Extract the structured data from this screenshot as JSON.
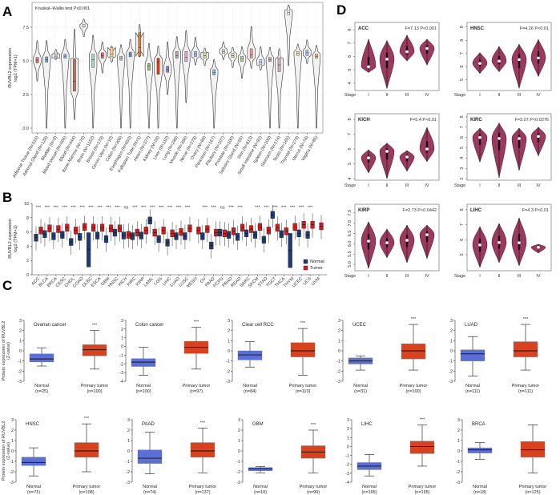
{
  "panels": [
    "A",
    "B",
    "C",
    "D"
  ],
  "chart_data": [
    {
      "type": "violin",
      "panel": "A",
      "annotation": "Kruskal–Wallis test P≤0.001",
      "ylabel": [
        "RUVBL2 expression",
        "log2 (TPM+1)"
      ],
      "ylim": [
        -0.3,
        9.3
      ],
      "yticks": [
        0,
        2.5,
        5,
        7.5
      ],
      "ytick_labels": [
        "0.0",
        "2.5",
        "5.0",
        "7.5"
      ],
      "grid": true,
      "categories": [
        "Adipose Tissue (N=515)",
        "Adrenal Gland (N=128)",
        "Bladder (N=9)",
        "Blood Vessel (N=606)",
        "Blood (N=444)",
        "Bone Marrow (N=70)",
        "Brain (N=1152)",
        "Breast (N=179)",
        "Cervix Uteri (N=10)",
        "Colon (N=308)",
        "Esophagus (N=653)",
        "Fallopian Tube (N=5)",
        "Heart (N=377)",
        "Kidney (N=28)",
        "Liver (N=110)",
        "Lung (N=288)",
        "Muscle (N=396)",
        "Nerve (N=278)",
        "Ovary (N=88)",
        "Pancreas (N=167)",
        "Pituitary (N=107)",
        "Prostate (N=100)",
        "Salivary Gland (N=55)",
        "Skin (N=813)",
        "Small Intestine (N=92)",
        "Spleen (N=100)",
        "Stomach (N=174)",
        "Testis (N=165)",
        "Thyroid (N=279)",
        "Uterus (N=78)",
        "Vagina (N=85)"
      ],
      "stats_order": [
        "median",
        "q1",
        "q3",
        "min",
        "max"
      ],
      "values": [
        [
          5.05,
          4.85,
          5.25,
          3.5,
          6.5
        ],
        [
          5.1,
          4.9,
          5.3,
          0,
          6.5
        ],
        [
          5.35,
          5.2,
          5.5,
          5.1,
          5.85
        ],
        [
          5.35,
          5.2,
          5.5,
          0,
          6.6
        ],
        [
          3.5,
          2.75,
          5.15,
          0.65,
          7.35
        ],
        [
          7.6,
          7.5,
          7.7,
          6.8,
          8.1
        ],
        [
          5.1,
          4.5,
          5.5,
          0,
          6.9
        ],
        [
          5.4,
          5.2,
          5.6,
          4.1,
          6.4
        ],
        [
          5.5,
          5.3,
          6.0,
          4.9,
          6.1
        ],
        [
          5.2,
          5.05,
          5.35,
          0,
          6.2
        ],
        [
          5.45,
          5.3,
          5.65,
          0,
          6.6
        ],
        [
          6.0,
          5.35,
          7.1,
          5.3,
          7.7
        ],
        [
          4.6,
          4.3,
          4.8,
          0,
          6.3
        ],
        [
          4.9,
          4.0,
          5.2,
          0,
          6.1
        ],
        [
          4.35,
          4.15,
          4.6,
          2.5,
          6.4
        ],
        [
          5.4,
          5.2,
          5.7,
          0,
          6.8
        ],
        [
          5.25,
          4.95,
          5.7,
          1.9,
          7.25
        ],
        [
          5.5,
          5.3,
          5.7,
          4.7,
          6.75
        ],
        [
          5.4,
          5.2,
          5.6,
          4.65,
          5.95
        ],
        [
          4.15,
          3.95,
          4.35,
          0,
          5.1
        ],
        [
          5.7,
          5.55,
          5.85,
          5.1,
          6.4
        ],
        [
          5.4,
          5.25,
          5.55,
          4.5,
          6.0
        ],
        [
          5.15,
          4.95,
          5.35,
          3.7,
          6.05
        ],
        [
          5.45,
          5.2,
          5.9,
          4.45,
          7.55
        ],
        [
          4.9,
          4.7,
          5.1,
          4.3,
          6.05
        ],
        [
          5.1,
          4.95,
          5.25,
          0,
          6.0
        ],
        [
          4.7,
          4.2,
          5.2,
          0,
          5.9
        ],
        [
          8.6,
          8.4,
          8.75,
          4.65,
          9.15
        ],
        [
          5.55,
          5.4,
          5.7,
          0,
          6.25
        ],
        [
          5.6,
          5.4,
          5.8,
          4.8,
          6.55
        ],
        [
          5.35,
          5.2,
          5.5,
          0,
          6.15
        ]
      ],
      "colors": [
        "#e8735a",
        "#6fa8dc",
        "#d9d9d9",
        "#8fb0d8",
        "#b3735a",
        "#ffffff",
        "#a8d8c8",
        "#e06666",
        "#f6d08a",
        "#c9c9c9",
        "#5b9bd5",
        "#e07b1a",
        "#93c47d",
        "#cc4125",
        "#8e7cc3",
        "#b4a7a7",
        "#e8a0d0",
        "#a4c2f4",
        "#d5d5a0",
        "#76c5d5",
        "#d0e0f0",
        "#f9cb9c",
        "#b6d7a8",
        "#ea9999",
        "#c9daf8",
        "#b7b7b7",
        "#d5a6bd",
        "#ffffff",
        "#ffe599",
        "#9fc5e8",
        "#f4b183"
      ]
    },
    {
      "type": "box",
      "panel": "B",
      "ylabel": [
        "RUVBL2 expression",
        "log2 (TPM+1)"
      ],
      "ylim": [
        0,
        10
      ],
      "yticks": [
        0,
        2,
        4,
        6,
        8,
        10
      ],
      "ytick_labels": [
        "0",
        "2",
        "4",
        "6",
        "8",
        "10"
      ],
      "categories": [
        "ACC",
        "BLCA",
        "BRCA",
        "CESC",
        "CHOL",
        "COAD",
        "DLBC",
        "ESCA",
        "GBM",
        "HNSC",
        "KICH",
        "KIRC",
        "KIRP",
        "LAML",
        "LGG",
        "LIHC",
        "LUAD",
        "LUSC",
        "MESO",
        "OV",
        "PAAD",
        "PCPG",
        "PRAD",
        "READ",
        "SARC",
        "SKCM",
        "STAD",
        "TGCT",
        "THCA",
        "THYM",
        "UCEC",
        "UCS",
        "UVM"
      ],
      "significance": [
        "***",
        "***",
        "***",
        "***",
        "***",
        "***",
        "***",
        "***",
        "***",
        "***",
        "ns",
        "***",
        "***",
        "***",
        "***",
        "***",
        "***",
        "***",
        "",
        "***",
        "***",
        "ns",
        "***",
        "***",
        "",
        "***",
        "***",
        "***",
        "***",
        "***",
        "***",
        "***",
        ""
      ],
      "series": [
        {
          "name": "Normal",
          "color": "#1f3b73",
          "medians": [
            5.2,
            5.7,
            5.4,
            5.6,
            4.6,
            5.3,
            3.5,
            5.5,
            5.0,
            5.9,
            5.5,
            5.4,
            5.5,
            7.6,
            5.0,
            4.5,
            5.4,
            5.4,
            null,
            5.4,
            4.1,
            5.9,
            5.6,
            5.3,
            5.8,
            5.6,
            4.9,
            8.4,
            5.7,
            3.4,
            5.8,
            5.6,
            null
          ]
        },
        {
          "name": "Tumor",
          "color": "#d7191c",
          "medians": [
            6.2,
            6.5,
            6.4,
            6.6,
            6.2,
            6.7,
            6.6,
            6.6,
            6.5,
            6.5,
            5.6,
            5.9,
            6.2,
            5.9,
            6.2,
            5.8,
            6.0,
            6.5,
            6.2,
            6.4,
            5.9,
            5.8,
            6.1,
            6.6,
            6.4,
            6.7,
            6.2,
            6.6,
            6.1,
            6.7,
            7.0,
            7.0,
            6.8
          ]
        }
      ],
      "legend": "bottom-right"
    },
    {
      "type": "box",
      "panel": "C",
      "ylabel": [
        "Protein expression of RUVBL2",
        "(Z-value)"
      ],
      "stats_order": [
        "min",
        "q1",
        "median",
        "q3",
        "max"
      ],
      "normal_color": "#5b6fd6",
      "tumor_color": "#d9421f",
      "plots": [
        {
          "title": "Ovarian cancer",
          "ylim": [
            -3,
            3
          ],
          "normal_label": "Normal",
          "normal_n": "(n=25)",
          "tumor_label": "Primary tumor",
          "tumor_n": "(n=100)",
          "sig": "***",
          "normal": [
            -1.5,
            -1.1,
            -0.8,
            -0.3,
            0.3
          ],
          "tumor": [
            -1.8,
            -0.5,
            0.1,
            0.6,
            2.0
          ]
        },
        {
          "title": "Colon cancer",
          "ylim": [
            -4,
            3
          ],
          "normal_label": "Normal",
          "normal_n": "(n=100)",
          "tumor_label": "Primary tumor",
          "tumor_n": "(n=97)",
          "sig": "***",
          "normal": [
            -3.3,
            -2.3,
            -1.8,
            -1.4,
            -0.1
          ],
          "tumor": [
            -2.6,
            -0.8,
            -0.1,
            0.6,
            2.2
          ]
        },
        {
          "title": "Clear cell RCC",
          "ylim": [
            -3,
            3
          ],
          "normal_label": "Normal",
          "normal_n": "(n=84)",
          "tumor_label": "Primary tumor",
          "tumor_n": "(n=110)",
          "sig": "***",
          "normal": [
            -1.6,
            -0.9,
            -0.4,
            0,
            0.9
          ],
          "tumor": [
            -2.4,
            -0.6,
            0,
            0.8,
            2.2
          ]
        },
        {
          "title": "UCEC",
          "ylim": [
            -3,
            3
          ],
          "normal_label": "Normal",
          "normal_n": "(n=31)",
          "tumor_label": "Primary tumor",
          "tumor_n": "(n=100)",
          "sig": "***",
          "normal": [
            -1.9,
            -1.3,
            -1.0,
            -0.7,
            -0.5
          ],
          "tumor": [
            -1.9,
            -0.8,
            0,
            0.7,
            2.6
          ]
        },
        {
          "title": "LUAD",
          "ylim": [
            -3,
            3
          ],
          "normal_label": "Normal",
          "normal_n": "(n=111)",
          "tumor_label": "Primary tumor",
          "tumor_n": "(n=111)",
          "sig": "***",
          "normal": [
            -2.5,
            -1.0,
            -0.3,
            0.1,
            1.4
          ],
          "tumor": [
            -1.9,
            -0.6,
            0,
            0.9,
            2.6
          ]
        },
        {
          "title": "HNSC",
          "ylim": [
            -3,
            3
          ],
          "normal_label": "Normal",
          "normal_n": "(n=71)",
          "tumor_label": "Primary tumor",
          "tumor_n": "(n=108)",
          "sig": "***",
          "normal": [
            -2.4,
            -1.4,
            -1.1,
            -0.6,
            0.3
          ],
          "tumor": [
            -2.0,
            -0.6,
            0,
            0.8,
            2.6
          ]
        },
        {
          "title": "PAAD",
          "ylim": [
            -3,
            3
          ],
          "normal_label": "Normal",
          "normal_n": "(n=74)",
          "tumor_label": "Primary tumor",
          "tumor_n": "(n=137)",
          "sig": "***",
          "normal": [
            -2.2,
            -1.2,
            -0.7,
            0.1,
            1.8
          ],
          "tumor": [
            -2.1,
            -0.6,
            0,
            0.8,
            2.2
          ]
        },
        {
          "title": "GBM",
          "ylim": [
            -3,
            3
          ],
          "normal_label": "Normal",
          "normal_n": "(n=10)",
          "tumor_label": "Primary tumor",
          "tumor_n": "(n=99)",
          "sig": "***",
          "normal": [
            -2.1,
            -1.9,
            -1.7,
            -1.6,
            -1.5
          ],
          "tumor": [
            -2.1,
            -0.7,
            -0.1,
            0.5,
            2.0
          ]
        },
        {
          "title": "LIHC",
          "ylim": [
            -4,
            3
          ],
          "normal_label": "Normal",
          "normal_n": "(n=165)",
          "tumor_label": "Primary tumor",
          "tumor_n": "(n=165)",
          "sig": "***",
          "normal": [
            -3.3,
            -2.6,
            -2.2,
            -1.8,
            -0.9
          ],
          "tumor": [
            -2.2,
            -0.8,
            0,
            0.6,
            2.4
          ]
        },
        {
          "title": "BRCA",
          "ylim": [
            -3,
            3
          ],
          "normal_label": "Normal",
          "normal_n": "(n=18)",
          "tumor_label": "Primary tumor",
          "tumor_n": "(n=125)",
          "sig": "",
          "normal": [
            -0.8,
            -0.2,
            0.1,
            0.3,
            0.8
          ],
          "tumor": [
            -2.1,
            -0.6,
            0.1,
            0.9,
            2.5
          ]
        }
      ]
    },
    {
      "type": "violin",
      "panel": "D",
      "xlabel": "Stage",
      "stages": [
        "I",
        "II",
        "III",
        "IV"
      ],
      "color": "#9b3a5e",
      "stats_order": [
        "median",
        "min",
        "max"
      ],
      "plots": [
        {
          "title": "ACC",
          "stat": "F=7.13  P<0.001",
          "ylim": [
            3.45,
            8.55
          ],
          "yticks": [
            4,
            5,
            6,
            7,
            8
          ],
          "values": [
            [
              5.23,
              4.8,
              7.3
            ],
            [
              5.8,
              3.6,
              7.2
            ],
            [
              6.35,
              5.66,
              7.6
            ],
            [
              6.6,
              5.35,
              7.3
            ]
          ]
        },
        {
          "title": "HNSC",
          "stat": "F=4.26  P<0.01",
          "ylim": [
            4.18,
            9.35
          ],
          "yticks": [
            5,
            6,
            7,
            8,
            9
          ],
          "values": [
            [
              6.24,
              5.47,
              7.06
            ],
            [
              6.41,
              5.6,
              7.53
            ],
            [
              6.53,
              4.35,
              7.7
            ],
            [
              6.65,
              5.24,
              8.06
            ]
          ]
        },
        {
          "title": "KICH",
          "stat": "F=5.4  P<0.01",
          "ylim": [
            3.89,
            8.38
          ],
          "yticks": [
            4,
            5,
            6,
            7,
            8
          ],
          "values": [
            [
              5.4,
              4.38,
              5.95
            ],
            [
              5.84,
              4.0,
              6.4
            ],
            [
              5.46,
              4.49,
              5.9
            ],
            [
              6.0,
              5.14,
              7.46
            ]
          ]
        },
        {
          "title": "KIRC",
          "stat": "F=3.07  P<0.0276",
          "ylim": [
            1.85,
            8.3
          ],
          "yticks": [
            2,
            3,
            4,
            5,
            6,
            7,
            8
          ],
          "values": [
            [
              6.0,
              3.6,
              6.9
            ],
            [
              5.9,
              2.08,
              7.4
            ],
            [
              5.9,
              2.8,
              6.9
            ],
            [
              6.1,
              4.2,
              7.0
            ]
          ]
        },
        {
          "title": "KIRP",
          "stat": "F=2.73  P<0.0442",
          "ylim": [
            4.69,
            7.92
          ],
          "yticks": [
            5.0,
            5.5,
            6.0,
            6.5,
            7.0,
            7.5
          ],
          "ytick_labels": [
            "5.0",
            "5.5",
            "6.0",
            "6.5",
            "7.0",
            "7.5"
          ],
          "values": [
            [
              6.13,
              4.8,
              7.07
            ],
            [
              6.05,
              5.32,
              6.72
            ],
            [
              6.17,
              5.08,
              6.91
            ],
            [
              6.44,
              5.28,
              6.91
            ]
          ]
        },
        {
          "title": "LIHC",
          "stat": "F=4.3  P<0.01",
          "ylim": [
            3.93,
            8.37
          ],
          "yticks": [
            5,
            6,
            7,
            8
          ],
          "values": [
            [
              5.65,
              4.15,
              6.88
            ],
            [
              5.81,
              4.47,
              7.09
            ],
            [
              5.8,
              4.26,
              7.47
            ],
            [
              5.49,
              5.11,
              5.7
            ]
          ]
        }
      ]
    }
  ]
}
